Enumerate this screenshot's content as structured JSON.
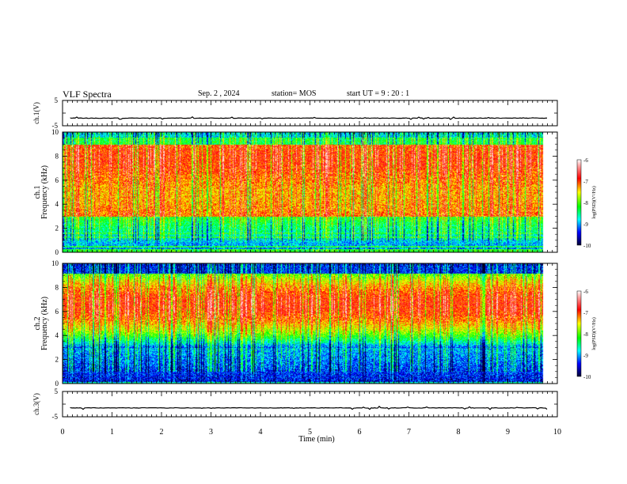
{
  "header": {
    "title": "VLF Spectra",
    "date": "Sep. 2 , 2024",
    "station": "station= MOS",
    "start": "start  UT =  9 : 20 : 1"
  },
  "chart_data": [
    {
      "type": "line",
      "ylabel": "ch.1(V)",
      "ylim": [
        -5,
        5
      ],
      "y_ticks": [
        "5",
        "-5"
      ],
      "xlim": [
        0,
        10
      ],
      "trace_level": -2
    },
    {
      "type": "heatmap",
      "ylabel_line1": "ch.1",
      "ylabel_line2": "Frequency (kHz)",
      "ylim": [
        0,
        10
      ],
      "y_ticks": [
        "0",
        "2",
        "4",
        "6",
        "8",
        "10"
      ],
      "xlim": [
        0,
        10
      ],
      "data_x_end": 9.85,
      "colorbar": {
        "label": "log(PSD)(V²/Hz)",
        "range": [
          -10,
          -6
        ],
        "ticks": [
          "-6",
          "-7",
          "-8",
          "-9",
          "-10"
        ]
      },
      "bands_khz": {
        "blue_bottom": [
          0,
          0.3
        ],
        "noise": [
          0.3,
          3.0
        ],
        "intense": [
          3.0,
          9.0
        ],
        "top_blue": [
          9.0,
          10.0
        ]
      }
    },
    {
      "type": "heatmap",
      "ylabel_line1": "ch.2",
      "ylabel_line2": "Frequency (kHz)",
      "ylim": [
        0,
        10
      ],
      "y_ticks": [
        "0",
        "2",
        "4",
        "6",
        "8",
        "10"
      ],
      "xlim": [
        0,
        10
      ],
      "data_x_end": 9.85,
      "colorbar": {
        "label": "log(PSD)(V²/Hz)",
        "range": [
          -10,
          -6
        ],
        "ticks": [
          "-6",
          "-7",
          "-8",
          "-9",
          "-10"
        ]
      },
      "bands_khz": {
        "blue_bottom": [
          0,
          3.0
        ],
        "intense_center": 6.5,
        "top_blue": [
          9.0,
          10.0
        ]
      }
    },
    {
      "type": "line",
      "ylabel": "ch.3(V)",
      "ylim": [
        -5,
        5
      ],
      "y_ticks": [
        "5",
        "-5"
      ],
      "xlim": [
        0,
        10
      ],
      "trace_level": -1.5
    }
  ],
  "x_axis": {
    "label": "Time (min)",
    "ticks": [
      "0",
      "1",
      "2",
      "3",
      "4",
      "5",
      "6",
      "7",
      "8",
      "9",
      "10"
    ]
  }
}
